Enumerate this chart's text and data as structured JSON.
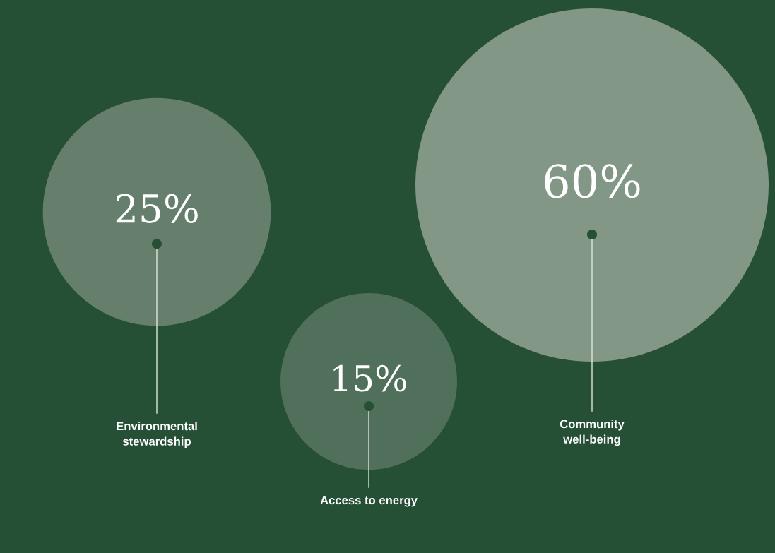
{
  "chart_data": {
    "type": "other",
    "categories": [
      "Environmental\nstewardship",
      "Access to energy",
      "Community\nwell-being"
    ],
    "values": [
      25,
      15,
      60
    ],
    "value_labels": [
      "25%",
      "15%",
      "60%"
    ],
    "colors": [
      "#657f6c",
      "#51705b",
      "#829785"
    ]
  }
}
